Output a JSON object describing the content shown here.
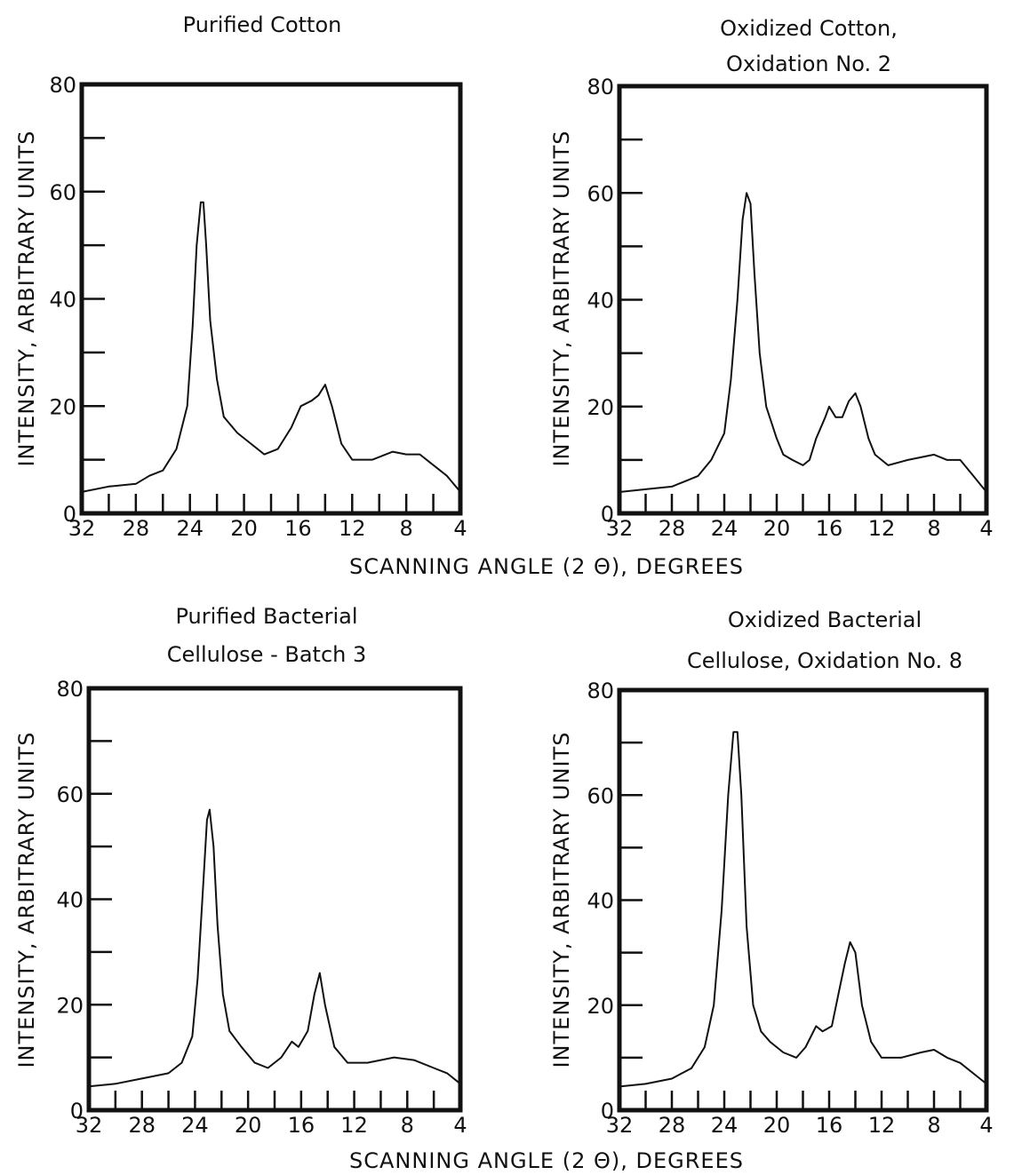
{
  "chart_data": [
    {
      "type": "line",
      "title": [
        "Purified    Cotton"
      ],
      "ylabel": "INTENSITY,  ARBITRARY  UNITS",
      "xlim": [
        32,
        4
      ],
      "ylim": [
        0,
        80
      ],
      "x_tick_labels": [
        "32",
        "28",
        "24",
        "20",
        "16",
        "12",
        "8",
        "4"
      ],
      "y_tick_labels": [
        "0",
        "20",
        "40",
        "60",
        "80"
      ],
      "series": [
        {
          "points": [
            [
              32,
              4
            ],
            [
              30,
              5
            ],
            [
              28,
              5.5
            ],
            [
              27,
              7
            ],
            [
              26,
              8
            ],
            [
              25,
              12
            ],
            [
              24.2,
              20
            ],
            [
              23.8,
              35
            ],
            [
              23.5,
              50
            ],
            [
              23.2,
              58
            ],
            [
              23,
              58
            ],
            [
              22.8,
              50
            ],
            [
              22.5,
              36
            ],
            [
              22,
              25
            ],
            [
              21.5,
              18
            ],
            [
              20.5,
              15
            ],
            [
              19.5,
              13
            ],
            [
              18.5,
              11
            ],
            [
              17.5,
              12
            ],
            [
              16.5,
              16
            ],
            [
              15.8,
              20
            ],
            [
              15,
              21
            ],
            [
              14.5,
              22
            ],
            [
              14,
              24
            ],
            [
              13.5,
              20
            ],
            [
              12.8,
              13
            ],
            [
              12,
              10
            ],
            [
              10.5,
              10
            ],
            [
              9,
              11.5
            ],
            [
              8,
              11
            ],
            [
              7,
              11
            ],
            [
              6,
              9
            ],
            [
              5,
              7
            ],
            [
              4,
              4
            ]
          ]
        }
      ]
    },
    {
      "type": "line",
      "title": [
        "Oxidized    Cotton,",
        "Oxidation    No.  2"
      ],
      "ylabel": "INTENSITY,  ARBITRARY  UNITS",
      "xlim": [
        32,
        4
      ],
      "ylim": [
        0,
        80
      ],
      "x_tick_labels": [
        "32",
        "28",
        "24",
        "20",
        "16",
        "12",
        "8",
        "4"
      ],
      "y_tick_labels": [
        "0",
        "20",
        "40",
        "60",
        "80"
      ],
      "series": [
        {
          "points": [
            [
              32,
              4
            ],
            [
              30,
              4.5
            ],
            [
              28,
              5
            ],
            [
              27,
              6
            ],
            [
              26,
              7
            ],
            [
              25,
              10
            ],
            [
              24,
              15
            ],
            [
              23.5,
              25
            ],
            [
              23,
              40
            ],
            [
              22.6,
              55
            ],
            [
              22.3,
              60
            ],
            [
              22,
              58
            ],
            [
              21.7,
              45
            ],
            [
              21.3,
              30
            ],
            [
              20.8,
              20
            ],
            [
              20,
              14
            ],
            [
              19.5,
              11
            ],
            [
              18.8,
              10
            ],
            [
              18,
              9
            ],
            [
              17.5,
              10
            ],
            [
              17,
              14
            ],
            [
              16.3,
              18
            ],
            [
              16,
              20
            ],
            [
              15.5,
              18
            ],
            [
              15,
              18
            ],
            [
              14.5,
              21
            ],
            [
              14,
              22.5
            ],
            [
              13.6,
              20
            ],
            [
              13,
              14
            ],
            [
              12.5,
              11
            ],
            [
              11.5,
              9
            ],
            [
              10,
              10
            ],
            [
              9,
              10.5
            ],
            [
              8,
              11
            ],
            [
              7,
              10
            ],
            [
              6,
              10
            ],
            [
              5,
              7
            ],
            [
              4,
              4
            ]
          ]
        }
      ]
    },
    {
      "type": "line",
      "title": [
        "Purified    Bacterial",
        "Cellulose - Batch    3"
      ],
      "ylabel": "INTENSITY,  ARBITRARY  UNITS",
      "xlim": [
        32,
        4
      ],
      "ylim": [
        0,
        80
      ],
      "x_tick_labels": [
        "32",
        "28",
        "24",
        "20",
        "16",
        "12",
        "8",
        "4"
      ],
      "y_tick_labels": [
        "0",
        "20",
        "40",
        "60",
        "80"
      ],
      "series": [
        {
          "points": [
            [
              32,
              4.5
            ],
            [
              30,
              5
            ],
            [
              28,
              6
            ],
            [
              26,
              7
            ],
            [
              25,
              9
            ],
            [
              24.2,
              14
            ],
            [
              23.8,
              25
            ],
            [
              23.4,
              42
            ],
            [
              23.1,
              55
            ],
            [
              22.9,
              57
            ],
            [
              22.6,
              50
            ],
            [
              22.3,
              35
            ],
            [
              21.9,
              22
            ],
            [
              21.4,
              15
            ],
            [
              20.5,
              12
            ],
            [
              19.5,
              9
            ],
            [
              18.5,
              8
            ],
            [
              17.5,
              10
            ],
            [
              16.7,
              13
            ],
            [
              16.2,
              12
            ],
            [
              15.5,
              15
            ],
            [
              15,
              22
            ],
            [
              14.6,
              26
            ],
            [
              14.2,
              20
            ],
            [
              13.5,
              12
            ],
            [
              12.5,
              9
            ],
            [
              11,
              9
            ],
            [
              9,
              10
            ],
            [
              7.5,
              9.5
            ],
            [
              6,
              8
            ],
            [
              5,
              7
            ],
            [
              4,
              5
            ]
          ]
        }
      ]
    },
    {
      "type": "line",
      "title": [
        "Oxidized    Bacterial",
        "Cellulose,   Oxidation    No.  8"
      ],
      "ylabel": "INTENSITY,  ARBITRARY  UNITS",
      "xlim": [
        32,
        4
      ],
      "ylim": [
        0,
        80
      ],
      "x_tick_labels": [
        "32",
        "28",
        "24",
        "20",
        "16",
        "12",
        "8",
        "4"
      ],
      "y_tick_labels": [
        "0",
        "20",
        "40",
        "60",
        "80"
      ],
      "series": [
        {
          "points": [
            [
              32,
              4.5
            ],
            [
              30,
              5
            ],
            [
              28,
              6
            ],
            [
              26.5,
              8
            ],
            [
              25.5,
              12
            ],
            [
              24.8,
              20
            ],
            [
              24.2,
              38
            ],
            [
              23.7,
              60
            ],
            [
              23.3,
              72
            ],
            [
              23,
              72
            ],
            [
              22.7,
              60
            ],
            [
              22.3,
              35
            ],
            [
              21.8,
              20
            ],
            [
              21.2,
              15
            ],
            [
              20.5,
              13
            ],
            [
              19.5,
              11
            ],
            [
              18.5,
              10
            ],
            [
              17.8,
              12
            ],
            [
              17,
              16
            ],
            [
              16.5,
              15
            ],
            [
              15.8,
              16
            ],
            [
              15.3,
              22
            ],
            [
              14.8,
              28
            ],
            [
              14.4,
              32
            ],
            [
              14,
              30
            ],
            [
              13.5,
              20
            ],
            [
              12.8,
              13
            ],
            [
              12,
              10
            ],
            [
              10.5,
              10
            ],
            [
              9,
              11
            ],
            [
              8,
              11.5
            ],
            [
              7,
              10
            ],
            [
              6,
              9
            ],
            [
              5,
              7
            ],
            [
              4,
              5
            ]
          ]
        }
      ]
    }
  ],
  "shared_xlabel": "SCANNING    ANGLE    (2 Θ),    DEGREES",
  "shared_xlabel_bottom": "SCANNING    ANGLE    (2 Θ),    DEGREES"
}
